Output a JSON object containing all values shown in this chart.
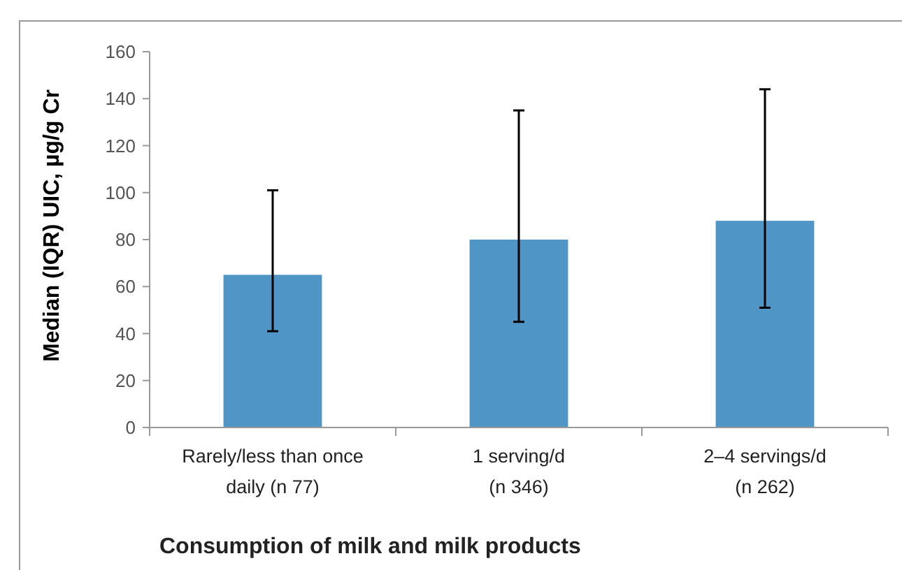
{
  "chart_data": {
    "type": "bar",
    "xlabel": "Consumption of milk and milk products",
    "ylabel": "Median (IQR) UIC, µg/g Cr",
    "categories": [
      "Rarely/less than once\ndaily (n 77)",
      "1 serving/d\n(n 346)",
      "2–4 servings/d\n(n 262)"
    ],
    "values": [
      65,
      80,
      88
    ],
    "color": "#4f95c5",
    "errors": [
      [
        41,
        101
      ],
      [
        45,
        135
      ],
      [
        51,
        144
      ]
    ],
    "ylim": [
      0,
      160
    ],
    "yticks": [
      0,
      20,
      40,
      60,
      80,
      100,
      120,
      140,
      160
    ],
    "grid": false
  }
}
